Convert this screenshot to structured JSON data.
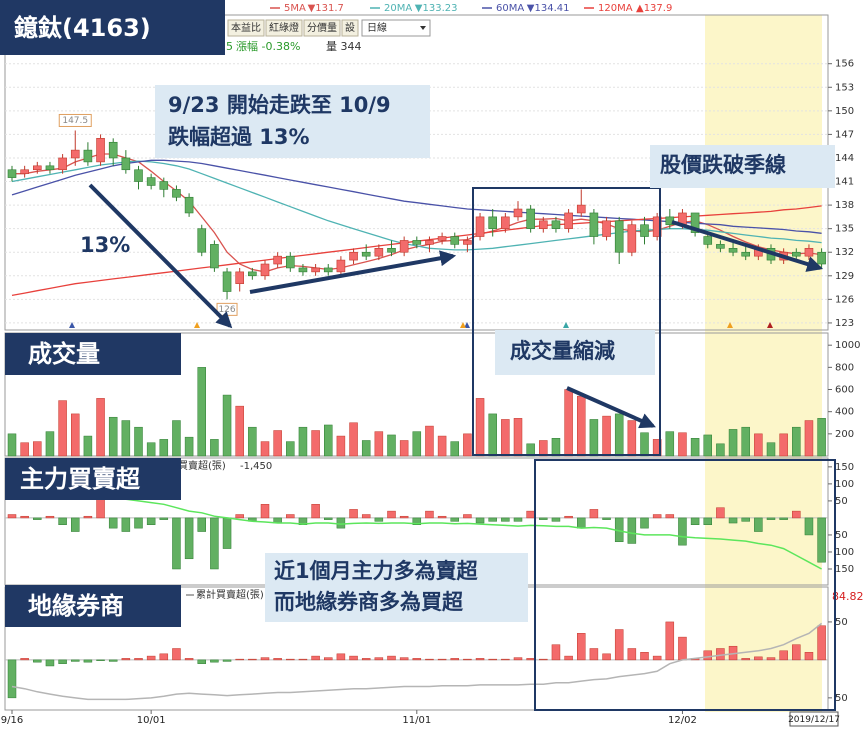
{
  "chart_data": [
    {
      "type": "candlestick",
      "title": "鐿鈦(4163)",
      "toolbar": [
        "本益比",
        "紅綠燈",
        "分價量",
        "設"
      ],
      "period": "日線",
      "status": [
        "5",
        "漲幅 -0.38%",
        "量 344"
      ],
      "up_color": "#f36b6b",
      "down_color": "#62b062",
      "grid": true,
      "ylim": [
        122.1,
        162.2
      ],
      "yticks": [
        156,
        153,
        150,
        147,
        144,
        141,
        138,
        135,
        132,
        129,
        126,
        123
      ],
      "high_mark": 147.5,
      "low_mark": 126,
      "annotations": [
        {
          "lines": [
            "9/23 開始走跌至 10/9",
            "跌幅超過 13%"
          ]
        },
        {
          "lines": [
            "股價跌破季線"
          ]
        },
        {
          "lines": [
            "13%"
          ]
        }
      ],
      "values": [
        [
          142.5,
          143,
          141,
          141.5
        ],
        [
          142,
          143,
          141.5,
          142.5
        ],
        [
          142.5,
          143.5,
          142,
          143
        ],
        [
          143,
          143.5,
          142,
          142.5
        ],
        [
          142.5,
          144.5,
          142,
          144
        ],
        [
          144,
          147.5,
          143,
          145
        ],
        [
          145,
          146,
          143,
          143.5
        ],
        [
          143.5,
          147,
          143,
          146.5
        ],
        [
          146,
          146.5,
          143,
          144
        ],
        [
          144,
          145,
          142,
          142.5
        ],
        [
          142.5,
          143,
          140,
          141
        ],
        [
          141.5,
          142,
          140,
          140.5
        ],
        [
          141,
          141.5,
          139,
          140
        ],
        [
          140,
          140.5,
          138.5,
          139
        ],
        [
          139,
          139.5,
          136.5,
          137
        ],
        [
          135,
          135.5,
          131.5,
          132
        ],
        [
          133,
          133.5,
          129.5,
          130
        ],
        [
          129.5,
          130,
          126,
          127
        ],
        [
          128,
          130,
          127,
          129.5
        ],
        [
          129.5,
          130,
          128.5,
          129
        ],
        [
          129,
          131,
          128.5,
          130.5
        ],
        [
          130.5,
          132,
          130,
          131.5
        ],
        [
          131.5,
          132,
          129.5,
          130
        ],
        [
          130,
          130.5,
          129,
          129.5
        ],
        [
          129.5,
          130.5,
          129,
          130
        ],
        [
          130,
          130.5,
          129,
          129.5
        ],
        [
          129.5,
          131.5,
          129,
          131
        ],
        [
          131,
          132.5,
          130.5,
          132
        ],
        [
          132,
          133,
          131,
          131.5
        ],
        [
          131.5,
          133,
          131,
          132.5
        ],
        [
          132.5,
          133.5,
          131.5,
          132
        ],
        [
          132,
          134,
          131.5,
          133.5
        ],
        [
          133.5,
          134,
          132.5,
          133
        ],
        [
          133,
          134,
          132,
          133.5
        ],
        [
          133.5,
          134.5,
          133,
          134
        ],
        [
          134,
          134.5,
          132.5,
          133
        ],
        [
          133,
          134,
          132,
          133.5
        ],
        [
          134,
          137,
          133.5,
          136.5
        ],
        [
          136.5,
          137.5,
          134,
          135
        ],
        [
          135,
          137,
          134.5,
          136.5
        ],
        [
          136.5,
          138.5,
          136,
          137.5
        ],
        [
          137.5,
          138,
          134.5,
          135
        ],
        [
          135,
          136.5,
          134.5,
          136
        ],
        [
          136,
          136.5,
          134.5,
          135
        ],
        [
          135,
          137.5,
          134.5,
          137
        ],
        [
          137,
          140,
          136.5,
          138
        ],
        [
          137,
          137.5,
          133,
          134
        ],
        [
          134,
          136.5,
          133.5,
          136
        ],
        [
          136,
          136.5,
          130.5,
          132
        ],
        [
          132,
          136,
          131.5,
          135.5
        ],
        [
          135.5,
          136.5,
          133,
          134
        ],
        [
          134,
          137,
          133.5,
          136.5
        ],
        [
          136.5,
          137.5,
          135,
          135.5
        ],
        [
          135.5,
          137.5,
          135,
          137
        ],
        [
          137,
          137,
          134,
          134.5
        ],
        [
          134,
          134.5,
          132.5,
          133
        ],
        [
          133,
          133.5,
          132,
          132.5
        ],
        [
          132.5,
          133.5,
          131.5,
          132
        ],
        [
          132,
          133,
          131,
          131.5
        ],
        [
          131.5,
          133,
          131,
          132.5
        ],
        [
          132.5,
          133,
          130.5,
          131
        ],
        [
          131,
          132.5,
          130.5,
          132
        ],
        [
          132,
          132.5,
          131,
          131.5
        ],
        [
          131.5,
          133,
          131,
          132.5
        ],
        [
          132,
          132.5,
          130,
          130.5
        ]
      ],
      "series": [
        {
          "name": "5MA",
          "legend_value": "▼131.7",
          "color": "#d9534f",
          "values": [
            142,
            142,
            142.3,
            142.5,
            142.7,
            143.5,
            144,
            144.5,
            144.5,
            144,
            143.5,
            142.3,
            141,
            139.8,
            138.5,
            136.5,
            134.5,
            132,
            130.5,
            129.8,
            129.5,
            130,
            130.3,
            130.2,
            130,
            129.8,
            130,
            130.4,
            130.8,
            131.2,
            131.7,
            132.3,
            132.7,
            133,
            133.4,
            133.5,
            133.6,
            134.3,
            134.7,
            135.2,
            135.8,
            136.2,
            136.2,
            136.3,
            136,
            136.2,
            136,
            135.6,
            135,
            134.7,
            134.6,
            134.8,
            135.3,
            135.8,
            136,
            135.5,
            134.8,
            134,
            133.3,
            132.7,
            132.3,
            132,
            131.8,
            131.9,
            131.7
          ]
        },
        {
          "name": "20MA",
          "legend_value": "▼133.23",
          "color": "#4fb3b3",
          "values": [
            141,
            141.3,
            141.6,
            141.9,
            142.2,
            142.5,
            142.8,
            143.1,
            143.3,
            143.5,
            143.6,
            143.5,
            143.3,
            143,
            142.6,
            142,
            141.4,
            140.8,
            140.2,
            139.6,
            139,
            138.4,
            137.8,
            137.2,
            136.6,
            136,
            135.5,
            135,
            134.5,
            134,
            133.5,
            133.1,
            132.8,
            132.5,
            132.4,
            132.3,
            132.3,
            132.4,
            132.5,
            132.7,
            132.9,
            133.1,
            133.3,
            133.5,
            133.7,
            133.9,
            134.1,
            134.3,
            134.5,
            134.7,
            134.8,
            134.9,
            135,
            135,
            134.9,
            134.8,
            134.6,
            134.4,
            134.2,
            134,
            133.8,
            133.7,
            133.5,
            133.4,
            133.23
          ]
        },
        {
          "name": "60MA",
          "legend_value": "▼134.41",
          "color": "#4a52a8",
          "values": [
            139.3,
            139.8,
            140.3,
            140.8,
            141.3,
            141.8,
            142.2,
            142.6,
            143,
            143.3,
            143.5,
            143.7,
            143.7,
            143.6,
            143.5,
            143.3,
            143,
            142.7,
            142.4,
            142.1,
            141.8,
            141.5,
            141.2,
            140.9,
            140.6,
            140.3,
            140,
            139.7,
            139.4,
            139.1,
            138.8,
            138.5,
            138.3,
            138.1,
            137.9,
            137.7,
            137.5,
            137.4,
            137.3,
            137.2,
            137.1,
            137,
            136.9,
            136.8,
            136.7,
            136.6,
            136.5,
            136.4,
            136.3,
            136.2,
            136.1,
            136,
            135.9,
            135.8,
            135.7,
            135.6,
            135.5,
            135.3,
            135.2,
            135.1,
            135,
            134.9,
            134.7,
            134.6,
            134.41
          ]
        },
        {
          "name": "120MA",
          "legend_value": "▲137.9",
          "color": "#e8413c",
          "values": [
            126.5,
            126.8,
            127.1,
            127.4,
            127.7,
            128,
            128.2,
            128.4,
            128.6,
            128.8,
            129,
            129.2,
            129.4,
            129.6,
            129.8,
            130,
            130.2,
            130.4,
            130.6,
            130.8,
            131,
            131.2,
            131.4,
            131.6,
            131.8,
            132,
            132.2,
            132.4,
            132.6,
            132.8,
            133,
            133.2,
            133.4,
            133.6,
            133.8,
            134,
            134.2,
            134.4,
            134.6,
            134.8,
            135,
            135.2,
            135.4,
            135.5,
            135.6,
            135.7,
            135.8,
            135.9,
            136,
            136.1,
            136.2,
            136.3,
            136.4,
            136.5,
            136.6,
            136.7,
            136.8,
            136.9,
            137,
            137.1,
            137.2,
            137.4,
            137.5,
            137.7,
            137.9
          ]
        }
      ]
    },
    {
      "type": "bar",
      "title": "成交量",
      "up_color": "#f36b6b",
      "down_color": "#62b062",
      "ylim": [
        0,
        1110
      ],
      "yticks": [
        1000,
        800,
        600,
        400,
        200
      ],
      "annotations": [
        {
          "lines": [
            "成交量縮減"
          ]
        }
      ],
      "values": [
        200,
        120,
        130,
        220,
        500,
        380,
        180,
        520,
        350,
        320,
        260,
        120,
        150,
        320,
        170,
        800,
        150,
        550,
        450,
        260,
        130,
        230,
        130,
        260,
        230,
        280,
        180,
        300,
        140,
        220,
        190,
        140,
        220,
        270,
        180,
        130,
        200,
        520,
        380,
        330,
        340,
        110,
        140,
        160,
        600,
        540,
        330,
        360,
        380,
        320,
        210,
        150,
        220,
        210,
        160,
        190,
        110,
        240,
        260,
        200,
        120,
        200,
        260,
        320,
        340
      ]
    },
    {
      "type": "bar",
      "title": "主力買賣超",
      "ylim": [
        -197,
        176
      ],
      "yticks": [
        150,
        100,
        50,
        {
          "value": -50,
          "label": "50"
        },
        {
          "value": -100,
          "label": "100"
        },
        {
          "value": -150,
          "label": "150"
        }
      ],
      "annotations": [
        {
          "lines": [
            "近1個月主力多為賣超",
            "而地緣券商多為買超"
          ]
        }
      ],
      "series": [
        {
          "name": "買賣超(張)",
          "legend_value": "-1,450",
          "style": "bar",
          "up_color": "#f36b6b",
          "down_color": "#62b062",
          "values": [
            10,
            5,
            -5,
            5,
            -20,
            -40,
            5,
            70,
            -30,
            -40,
            -30,
            -20,
            -5,
            -150,
            -120,
            -40,
            -150,
            -90,
            10,
            -10,
            40,
            -15,
            10,
            -20,
            40,
            -5,
            -30,
            25,
            10,
            -10,
            20,
            5,
            -20,
            20,
            5,
            -10,
            10,
            -15,
            -10,
            -10,
            -10,
            20,
            -5,
            -10,
            5,
            -30,
            25,
            -5,
            -70,
            -75,
            -30,
            10,
            10,
            -80,
            -20,
            -20,
            30,
            -15,
            -10,
            -40,
            -5,
            -5,
            20,
            -50,
            -130
          ]
        },
        {
          "style": "line",
          "color": "#5ce65c",
          "values": [
            65,
            65,
            64,
            64,
            62,
            58,
            58,
            60,
            58,
            55,
            50,
            45,
            40,
            30,
            20,
            15,
            5,
            0,
            -5,
            -10,
            -12,
            -15,
            -15,
            -18,
            -15,
            -15,
            -18,
            -16,
            -15,
            -16,
            -15,
            -15,
            -17,
            -15,
            -15,
            -17,
            -16,
            -18,
            -20,
            -22,
            -24,
            -22,
            -23,
            -25,
            -25,
            -30,
            -28,
            -30,
            -38,
            -45,
            -50,
            -50,
            -50,
            -55,
            -58,
            -60,
            -62,
            -65,
            -68,
            -75,
            -80,
            -90,
            -110,
            -130,
            -150
          ]
        }
      ]
    },
    {
      "type": "bar",
      "title": "地緣券商",
      "ylim": [
        -66,
        96
      ],
      "yticks": [
        50,
        {
          "value": -50,
          "label": "50"
        }
      ],
      "last_value": 84.82,
      "categories": [
        "9/16",
        null,
        null,
        null,
        null,
        null,
        null,
        null,
        null,
        null,
        null,
        "10/01",
        null,
        null,
        null,
        null,
        null,
        null,
        null,
        null,
        null,
        null,
        null,
        null,
        null,
        null,
        null,
        null,
        null,
        null,
        null,
        null,
        "11/01",
        null,
        null,
        null,
        null,
        null,
        null,
        null,
        null,
        null,
        null,
        null,
        null,
        null,
        null,
        null,
        null,
        null,
        null,
        null,
        null,
        "12/02",
        null,
        null,
        null,
        null,
        null,
        null,
        null,
        null,
        null,
        null,
        null
      ],
      "end_date": "2019/12/17",
      "series": [
        {
          "style": "bar",
          "up_color": "#f36b6b",
          "down_color": "#62b062",
          "values": [
            -50,
            2,
            -3,
            -8,
            -5,
            -2,
            -3,
            -1,
            -2,
            2,
            2,
            5,
            8,
            15,
            2,
            -5,
            -3,
            -2,
            1,
            1,
            3,
            2,
            1,
            1,
            5,
            3,
            8,
            5,
            2,
            3,
            5,
            3,
            2,
            1,
            1,
            2,
            1,
            2,
            1,
            1,
            3,
            2,
            1,
            20,
            5,
            35,
            15,
            8,
            40,
            15,
            10,
            5,
            50,
            30,
            2,
            12,
            15,
            18,
            2,
            4,
            3,
            12,
            20,
            10,
            45
          ]
        },
        {
          "name": "累計買賣超(張)",
          "style": "line",
          "color": "#b5b5b5",
          "values": [
            -35,
            -38,
            -42,
            -45,
            -48,
            -50,
            -52,
            -52,
            -52,
            -52,
            -51,
            -50,
            -48,
            -45,
            -44,
            -45,
            -46,
            -47,
            -46,
            -45,
            -44,
            -43,
            -43,
            -42,
            -41,
            -40,
            -39,
            -38,
            -38,
            -37,
            -36,
            -35,
            -35,
            -35,
            -34,
            -34,
            -34,
            -33,
            -33,
            -33,
            -33,
            -32,
            -32,
            -30,
            -30,
            -28,
            -26,
            -25,
            -22,
            -20,
            -18,
            -15,
            -5,
            0,
            2,
            4,
            6,
            8,
            10,
            12,
            15,
            20,
            28,
            35,
            48
          ]
        }
      ]
    }
  ]
}
